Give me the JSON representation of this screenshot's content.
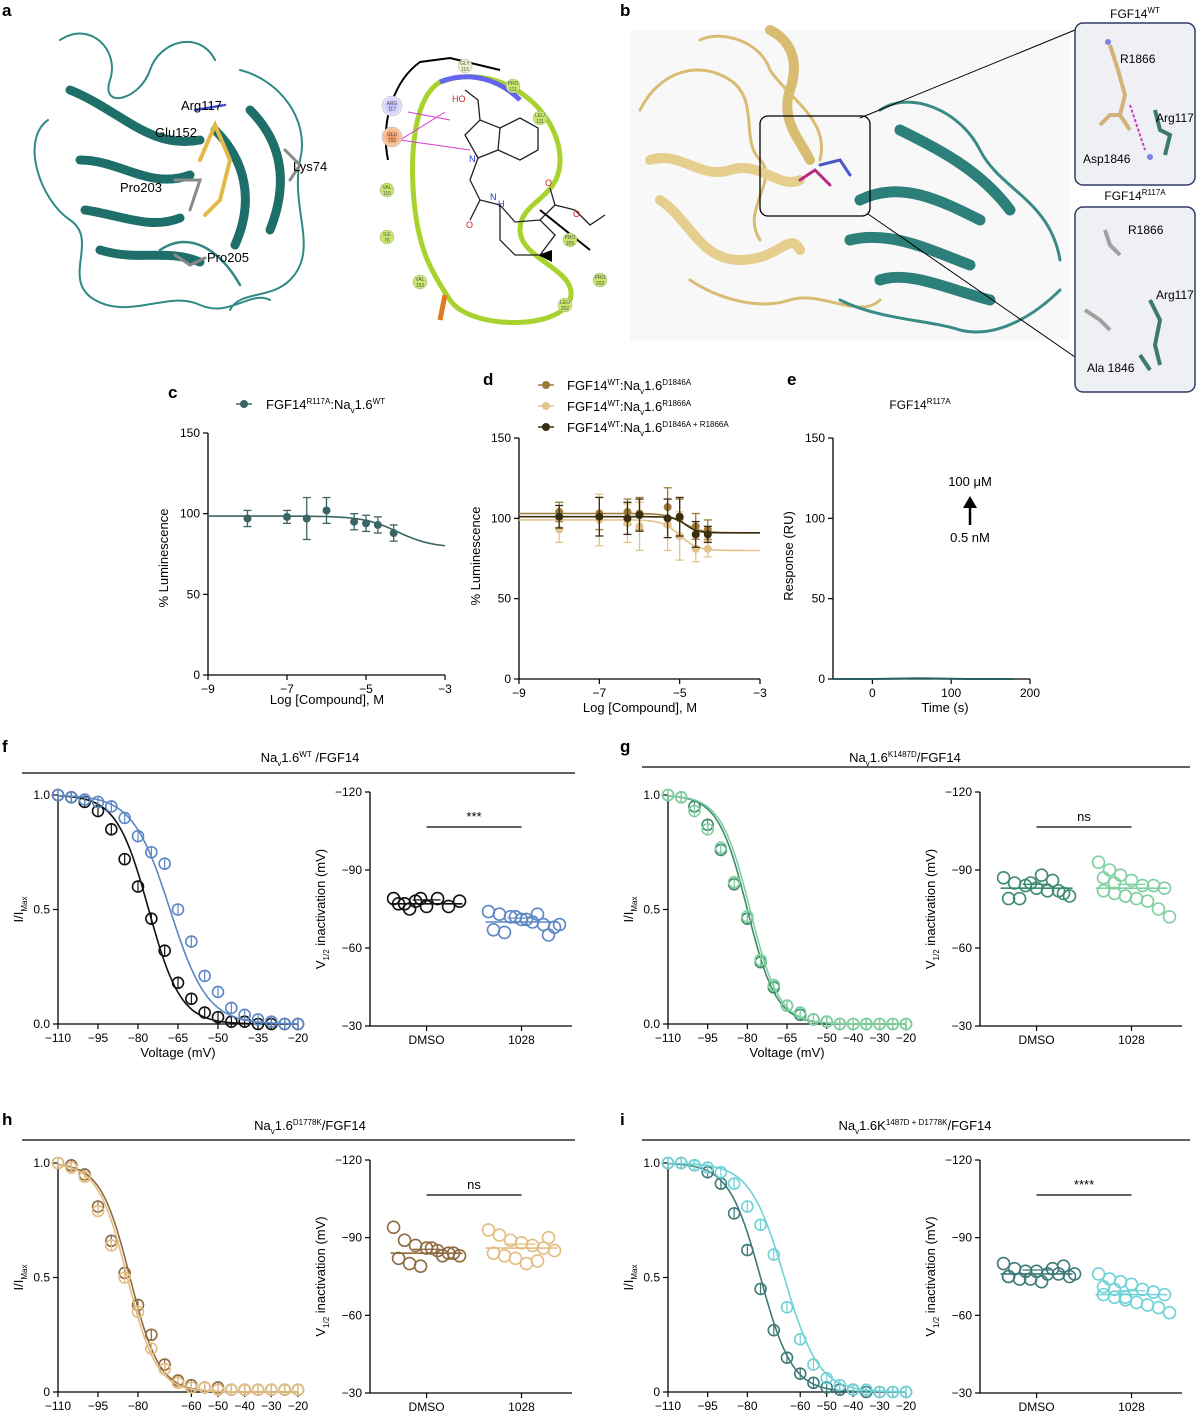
{
  "panel_letters": {
    "a": "a",
    "b": "b",
    "c": "c",
    "d": "d",
    "e": "e",
    "f": "f",
    "g": "g",
    "h": "h",
    "i": "i"
  },
  "panel_a": {
    "residues": {
      "arg117": "Arg117",
      "glu152": "Glu152",
      "lys74": "Lys74",
      "pro203": "Pro203",
      "pro205": "Pro205"
    },
    "interaction_diagram": {
      "residues": [
        {
          "name": "GLY",
          "num": "115"
        },
        {
          "name": "PRO",
          "num": "111"
        },
        {
          "name": "LEU",
          "num": "111"
        },
        {
          "name": "ARG",
          "num": "117"
        },
        {
          "name": "GLU",
          "num": "152"
        },
        {
          "name": "VAL",
          "num": "115"
        },
        {
          "name": "ILE",
          "num": "76"
        },
        {
          "name": "VAL",
          "num": "153"
        },
        {
          "name": "PRO",
          "num": "205"
        },
        {
          "name": "PRO",
          "num": "203"
        },
        {
          "name": "LEU",
          "num": "202"
        }
      ],
      "atoms": {
        "ho": "HO",
        "n": "N",
        "nh": "N",
        "h": "H",
        "o1": "O",
        "o2": "O",
        "o3": "O"
      }
    }
  },
  "panel_b": {
    "wt_title_base": "FGF14",
    "wt_title_sup": "WT",
    "ra_title_base": "FGF14",
    "ra_title_sup": "R117A",
    "wt_labels": {
      "r1866": "R1866",
      "arg117": "Arg117",
      "asp1846": "Asp1846"
    },
    "ra_labels": {
      "r1866": "R1866",
      "arg117": "Arg117",
      "ala1846": "Ala 1846"
    }
  },
  "panel_c": {
    "legend": {
      "base": "FGF14",
      "sup1": "R117A",
      "mid": ":Na",
      "sub": "v",
      "tail": "1.6",
      "sup2": "WT"
    },
    "xlabel": "Log [Compound], M",
    "ylabel": "% Luminescence",
    "xticks": [
      "−9",
      "−7",
      "−5",
      "−3"
    ],
    "yticks": [
      "0",
      "50",
      "100",
      "150"
    ]
  },
  "panel_d": {
    "legend": [
      {
        "base": "FGF14",
        "sup1": "WT",
        "mid": ":Na",
        "sub": "v",
        "tail": "1.6",
        "sup2": "D1846A"
      },
      {
        "base": "FGF14",
        "sup1": "WT",
        "mid": ":Na",
        "sub": "v",
        "tail": "1.6",
        "sup2": "R1866A"
      },
      {
        "base": "FGF14",
        "sup1": "WT",
        "mid": ":Na",
        "sub": "v",
        "tail": "1.6",
        "sup2": "D1846A + R1866A"
      }
    ],
    "xlabel": "Log [Compound], M",
    "ylabel": "% Luminescence",
    "xticks": [
      "−9",
      "−7",
      "−5",
      "−3"
    ],
    "yticks": [
      "0",
      "50",
      "100",
      "150"
    ]
  },
  "panel_e": {
    "title_base": "FGF14",
    "title_sup": "R117A",
    "annotation_top": "100 μM",
    "annotation_bottom": "0.5 nM",
    "xlabel": "Time (s)",
    "ylabel": "Response (RU)",
    "xticks": [
      "0",
      "100",
      "200"
    ],
    "yticks": [
      "0",
      "50",
      "100",
      "150"
    ]
  },
  "panel_f": {
    "title": {
      "a": "Na",
      "sub": "v",
      "b": "1.6",
      "sup": "WT",
      "c": " /FGF14"
    },
    "sig": "***",
    "curve_xlabel": "Voltage (mV)",
    "curve_ylabel_base": "I/I",
    "curve_ylabel_sub": "Max",
    "curve_xticks": [
      "−110",
      "−95",
      "−80",
      "−65",
      "−50",
      "−35",
      "−20"
    ],
    "curve_yticks": [
      "0.0",
      "0.5",
      "1.0"
    ],
    "dot_ylabel_base": "V",
    "dot_ylabel_sub": "1/2",
    "dot_ylabel_tail": " inactivation (mV)",
    "dot_yticks": [
      "−30",
      "−60",
      "−90",
      "−120"
    ],
    "groups": [
      "DMSO",
      "1028"
    ]
  },
  "panel_g": {
    "title": {
      "a": "Na",
      "sub": "v",
      "b": "1.6",
      "sup": "K1487D",
      "c": "/FGF14"
    },
    "sig": "ns",
    "curve_xlabel": "Voltage (mV)",
    "curve_ylabel_base": "I/I",
    "curve_ylabel_sub": "Max",
    "curve_xticks": [
      "−110",
      "−95",
      "−80",
      "−65",
      "−50",
      "−40",
      "−30",
      "−20"
    ],
    "curve_yticks": [
      "0.0",
      "0.5",
      "1.0"
    ],
    "dot_ylabel_base": "V",
    "dot_ylabel_sub": "1/2",
    "dot_ylabel_tail": " inactivation (mV)",
    "dot_yticks": [
      "−30",
      "−60",
      "−90",
      "−120"
    ],
    "groups": [
      "DMSO",
      "1028"
    ]
  },
  "panel_h": {
    "title": {
      "a": "Na",
      "sub": "v",
      "b": "1.6",
      "sup": "D1778K",
      "c": "/FGF14"
    },
    "sig": "ns",
    "curve_xlabel": "Voltage (mV)",
    "curve_ylabel_base": "I/I",
    "curve_ylabel_sub": "Max",
    "curve_xticks": [
      "−110",
      "−95",
      "−80",
      "−60",
      "−50",
      "−40",
      "−30",
      "−20"
    ],
    "curve_yticks": [
      "0",
      "0.5",
      "1.0"
    ],
    "dot_ylabel_base": "V",
    "dot_ylabel_sub": "1/2",
    "dot_ylabel_tail": " inactivation (mV)",
    "dot_yticks": [
      "−30",
      "−60",
      "−90",
      "−120"
    ],
    "groups": [
      "DMSO",
      "1028"
    ]
  },
  "panel_i": {
    "title": {
      "a": "Na",
      "sub": "v",
      "b": "1.6K",
      "sup": "1487D + D1778K",
      "c": "/FGF14"
    },
    "sig": "****",
    "curve_xlabel": "Voltage (mV)",
    "curve_ylabel_base": "I/I",
    "curve_ylabel_sub": "Max",
    "curve_xticks": [
      "−110",
      "−95",
      "−80",
      "−60",
      "−50",
      "−40",
      "−30",
      "−20"
    ],
    "curve_yticks": [
      "0",
      "0.5",
      "1.0"
    ],
    "dot_ylabel_base": "V",
    "dot_ylabel_sub": "1/2",
    "dot_ylabel_tail": " inactivation (mV)",
    "dot_yticks": [
      "−30",
      "−60",
      "−90",
      "−120"
    ],
    "groups": [
      "DMSO",
      "1028"
    ]
  },
  "colors": {
    "teal": "#2d7f7a",
    "dark_teal": "#2a5f63",
    "tan": "#e8cf8f",
    "c_series": "#3b6464",
    "d_1": "#9c7b3a",
    "d_2": "#e2c48c",
    "d_3": "#3a2d10",
    "f_dmso": "#111111",
    "f_1028": "#5d86c5",
    "g_dmso": "#3e8a6c",
    "g_1028": "#7fcf9f",
    "h_dmso": "#8d6a40",
    "h_1028": "#e2bd82",
    "i_dmso": "#3e7a78",
    "i_1028": "#6fd2d6"
  },
  "chart_data": [
    {
      "panel": "c",
      "type": "scatter",
      "xscale": "log10",
      "x_domain": [
        -9,
        -3
      ],
      "ylim": [
        0,
        150
      ],
      "series": [
        {
          "name": "FGF14R117A:Nav1.6WT",
          "color": "#3b6464",
          "x": [
            -8,
            -7,
            -6.5,
            -6,
            -5.3,
            -5,
            -4.7,
            -4.3
          ],
          "y": [
            97,
            98,
            97,
            102,
            95,
            94,
            93,
            88
          ],
          "err": [
            5,
            4,
            13,
            8,
            5,
            5,
            5,
            5
          ],
          "fit": {
            "bottom": 79,
            "top": 98.5,
            "logIC50": -4.2,
            "hill": 1
          }
        }
      ]
    },
    {
      "panel": "d",
      "type": "scatter",
      "xscale": "log10",
      "x_domain": [
        -9,
        -3
      ],
      "ylim": [
        0,
        150
      ],
      "series": [
        {
          "name": "FGF14WT:Nav1.6D1846A",
          "color": "#9c7b3a",
          "x": [
            -8,
            -7,
            -6.3,
            -6,
            -5.3,
            -5,
            -4.6,
            -4.3
          ],
          "y": [
            104,
            103,
            104,
            103,
            107,
            100,
            95,
            93
          ],
          "err": [
            6,
            10,
            8,
            10,
            12,
            12,
            8,
            6
          ],
          "fit": {
            "bottom": 91,
            "top": 103,
            "logIC50": -4.9,
            "hill": 2
          }
        },
        {
          "name": "FGF14WT:Nav1.6R1866A",
          "color": "#e2c48c",
          "x": [
            -8,
            -7,
            -6.3,
            -6,
            -5.3,
            -5,
            -4.6,
            -4.3
          ],
          "y": [
            93,
            99,
            97,
            95,
            96,
            89,
            81,
            81
          ],
          "err": [
            8,
            16,
            12,
            15,
            16,
            15,
            8,
            5
          ],
          "fit": {
            "bottom": 80,
            "top": 99,
            "logIC50": -5.0,
            "hill": 2
          }
        },
        {
          "name": "FGF14WT:Nav1.6D1846A + R1866A",
          "color": "#3a2d10",
          "x": [
            -8,
            -7,
            -6.3,
            -6,
            -5.3,
            -5,
            -4.6,
            -4.3
          ],
          "y": [
            101,
            101,
            100,
            102,
            100,
            101,
            90,
            90
          ],
          "err": [
            7,
            12,
            10,
            10,
            12,
            12,
            8,
            5
          ],
          "fit": {
            "bottom": 91,
            "top": 101,
            "logIC50": -4.85,
            "hill": 3
          }
        }
      ]
    },
    {
      "panel": "e",
      "type": "line",
      "xlabel": "Time (s)",
      "ylabel": "Response (RU)",
      "xlim": [
        -50,
        200
      ],
      "ylim": [
        0,
        150
      ],
      "series": [
        {
          "name": "FGF14R117A",
          "color": "#2a5f63",
          "x": [
            -50,
            0,
            60,
            120,
            180
          ],
          "y": [
            0,
            0,
            0.5,
            0,
            0
          ]
        }
      ]
    },
    {
      "panel": "f",
      "type": "scatter",
      "xlabel": "Voltage (mV)",
      "ylabel": "I/IMax",
      "xlim": [
        -110,
        -20
      ],
      "ylim": [
        0,
        1
      ],
      "x": [
        -110,
        -105,
        -100,
        -95,
        -90,
        -85,
        -80,
        -75,
        -70,
        -65,
        -60,
        -55,
        -50,
        -45,
        -40,
        -35,
        -30,
        -25,
        -20
      ],
      "series": [
        {
          "name": "DMSO",
          "color": "#111111",
          "v_half": -76,
          "k": 6,
          "y": [
            1.0,
            0.99,
            0.97,
            0.93,
            0.85,
            0.72,
            0.6,
            0.46,
            0.32,
            0.18,
            0.11,
            0.05,
            0.03,
            0.01,
            0.01,
            0.0,
            0.0,
            0.0,
            0.0
          ]
        },
        {
          "name": "1028",
          "color": "#5d86c5",
          "v_half": -68,
          "k": 7,
          "y": [
            1.0,
            0.99,
            0.98,
            0.97,
            0.95,
            0.9,
            0.82,
            0.75,
            0.7,
            0.5,
            0.36,
            0.21,
            0.14,
            0.07,
            0.04,
            0.02,
            0.01,
            0.0,
            0.0
          ]
        }
      ],
      "dotplot": {
        "ylabel": "V1/2 inactivation (mV)",
        "ylim": [
          -30,
          -120
        ],
        "groups": [
          {
            "name": "DMSO",
            "color": "#111111",
            "mean": -77,
            "values": [
              -79,
              -77,
              -78,
              -76,
              -79,
              -76,
              -78,
              -77,
              -75,
              -79
            ]
          },
          {
            "name": "1028",
            "color": "#5d86c5",
            "mean": -70,
            "values": [
              -74,
              -73,
              -72,
              -71,
              -70,
              -69,
              -68,
              -67,
              -66,
              -72,
              -71,
              -73,
              -65,
              -69
            ]
          }
        ]
      }
    },
    {
      "panel": "g",
      "type": "scatter",
      "xlabel": "Voltage (mV)",
      "ylabel": "I/IMax",
      "xlim": [
        -110,
        -20
      ],
      "ylim": [
        0,
        1
      ],
      "x": [
        -110,
        -105,
        -100,
        -95,
        -90,
        -85,
        -80,
        -75,
        -70,
        -65,
        -60,
        -55,
        -50,
        -45,
        -40,
        -35,
        -30,
        -25,
        -20
      ],
      "series": [
        {
          "name": "DMSO",
          "color": "#3e8a6c",
          "v_half": -80,
          "k": 5.5,
          "y": [
            1.0,
            0.99,
            0.95,
            0.87,
            0.76,
            0.61,
            0.46,
            0.27,
            0.16,
            0.08,
            0.04,
            0.02,
            0.01,
            0.0,
            0.0,
            0.0,
            0.0,
            0.0,
            0.0
          ]
        },
        {
          "name": "1028",
          "color": "#7fcf9f",
          "v_half": -79,
          "k": 5.5,
          "y": [
            1.0,
            0.99,
            0.93,
            0.85,
            0.77,
            0.62,
            0.47,
            0.28,
            0.17,
            0.08,
            0.05,
            0.02,
            0.01,
            0.0,
            0.0,
            0.0,
            0.0,
            0.0,
            0.0
          ]
        }
      ],
      "dotplot": {
        "ylabel": "V1/2 inactivation (mV)",
        "ylim": [
          -30,
          -120
        ],
        "groups": [
          {
            "name": "DMSO",
            "color": "#3e8a6c",
            "mean": -83,
            "values": [
              -87,
              -85,
              -84,
              -83,
              -82,
              -82,
              -80,
              -79,
              -79,
              -85,
              -88,
              -86,
              -81
            ]
          },
          {
            "name": "1028",
            "color": "#7fcf9f",
            "mean": -83,
            "values": [
              -93,
              -90,
              -88,
              -86,
              -84,
              -84,
              -83,
              -82,
              -81,
              -80,
              -79,
              -78,
              -75,
              -72,
              -87,
              -85,
              -80
            ]
          }
        ]
      }
    },
    {
      "panel": "h",
      "type": "scatter",
      "xlabel": "Voltage (mV)",
      "ylabel": "I/IMax",
      "xlim": [
        -110,
        -20
      ],
      "ylim": [
        0,
        1
      ],
      "x": [
        -110,
        -105,
        -100,
        -95,
        -90,
        -85,
        -80,
        -75,
        -70,
        -65,
        -60,
        -55,
        -50,
        -45,
        -40,
        -35,
        -30,
        -25,
        -20
      ],
      "series": [
        {
          "name": "DMSO",
          "color": "#8d6a40",
          "v_half": -83,
          "k": 5.5,
          "y": [
            1.0,
            0.99,
            0.95,
            0.81,
            0.66,
            0.52,
            0.38,
            0.25,
            0.12,
            0.05,
            0.03,
            0.02,
            0.02,
            0.01,
            0.01,
            0.01,
            0.01,
            0.01,
            0.01
          ]
        },
        {
          "name": "1028",
          "color": "#e2bd82",
          "v_half": -84,
          "k": 5.5,
          "y": [
            1.0,
            0.98,
            0.94,
            0.79,
            0.64,
            0.5,
            0.35,
            0.19,
            0.1,
            0.04,
            0.02,
            0.02,
            0.01,
            0.01,
            0.01,
            0.01,
            0.01,
            0.01,
            0.01
          ]
        }
      ],
      "dotplot": {
        "ylabel": "V1/2 inactivation (mV)",
        "ylim": [
          -30,
          -120
        ],
        "groups": [
          {
            "name": "DMSO",
            "color": "#8d6a40",
            "mean": -84,
            "values": [
              -94,
              -89,
              -87,
              -86,
              -85,
              -84,
              -83,
              -82,
              -80,
              -79,
              -86,
              -83,
              -84
            ]
          },
          {
            "name": "1028",
            "color": "#e2bd82",
            "mean": -86,
            "values": [
              -93,
              -91,
              -89,
              -88,
              -87,
              -86,
              -85,
              -84,
              -83,
              -82,
              -80,
              -81,
              -90
            ]
          }
        ]
      }
    },
    {
      "panel": "i",
      "type": "scatter",
      "xlabel": "Voltage (mV)",
      "ylabel": "I/IMax",
      "xlim": [
        -110,
        -20
      ],
      "ylim": [
        0,
        1
      ],
      "x": [
        -110,
        -105,
        -100,
        -95,
        -90,
        -85,
        -80,
        -75,
        -70,
        -65,
        -60,
        -55,
        -50,
        -45,
        -40,
        -35,
        -30,
        -25,
        -20
      ],
      "series": [
        {
          "name": "DMSO",
          "color": "#3e7a78",
          "v_half": -75,
          "k": 6,
          "y": [
            1.0,
            1.0,
            0.99,
            0.96,
            0.91,
            0.78,
            0.62,
            0.45,
            0.27,
            0.15,
            0.08,
            0.04,
            0.02,
            0.01,
            0.01,
            0.0,
            0.0,
            0.0,
            0.0
          ]
        },
        {
          "name": "1028",
          "color": "#6fd2d6",
          "v_half": -66,
          "k": 6.5,
          "y": [
            1.0,
            1.0,
            0.99,
            0.98,
            0.96,
            0.91,
            0.81,
            0.73,
            0.6,
            0.37,
            0.23,
            0.12,
            0.06,
            0.03,
            0.01,
            0.01,
            0.0,
            0.0,
            0.0
          ]
        }
      ],
      "dotplot": {
        "ylabel": "V1/2 inactivation (mV)",
        "ylim": [
          -30,
          -120
        ],
        "groups": [
          {
            "name": "DMSO",
            "color": "#3e7a78",
            "mean": -76,
            "values": [
              -80,
              -78,
              -77,
              -77,
              -76,
              -76,
              -75,
              -75,
              -74,
              -74,
              -73,
              -78,
              -79,
              -76,
              -75
            ]
          },
          {
            "name": "1028",
            "color": "#6fd2d6",
            "mean": -68,
            "values": [
              -76,
              -74,
              -73,
              -72,
              -70,
              -69,
              -68,
              -68,
              -67,
              -66,
              -65,
              -64,
              -63,
              -61,
              -71,
              -70,
              -67
            ]
          }
        ]
      }
    }
  ]
}
